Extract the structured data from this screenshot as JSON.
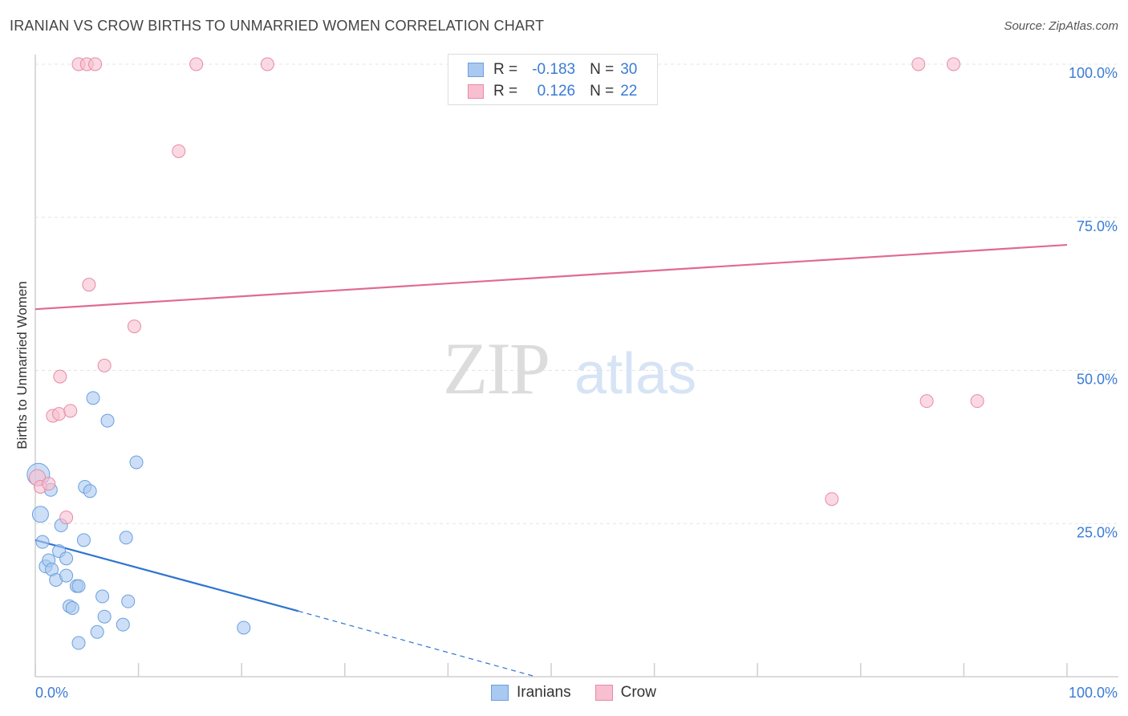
{
  "title": "IRANIAN VS CROW BIRTHS TO UNMARRIED WOMEN CORRELATION CHART",
  "source": "Source: ZipAtlas.com",
  "watermark": {
    "zip": "ZIP",
    "atlas": "atlas"
  },
  "legend": {
    "rows": [
      {
        "r_label": "R =",
        "r_value": "-0.183",
        "n_label": "N =",
        "n_value": "30",
        "color": "#aac9f0",
        "border": "#6a9fe0"
      },
      {
        "r_label": "R =",
        "r_value": "0.126",
        "n_label": "N =",
        "n_value": "22",
        "color": "#f7bfd0",
        "border": "#e88aa6"
      }
    ]
  },
  "bottom_legend": [
    {
      "label": "Iranians",
      "color": "#aac9f0",
      "border": "#6a9fe0"
    },
    {
      "label": "Crow",
      "color": "#f7bfd0",
      "border": "#e88aa6"
    }
  ],
  "chart_data": {
    "type": "scatter",
    "title": "IRANIAN VS CROW BIRTHS TO UNMARRIED WOMEN CORRELATION CHART",
    "xlabel": "",
    "ylabel": "Births to Unmarried Women",
    "xlim": [
      0,
      100
    ],
    "ylim": [
      0,
      100
    ],
    "x_tick_labels": [
      "0.0%",
      "100.0%"
    ],
    "y_tick_labels": [
      "25.0%",
      "50.0%",
      "75.0%",
      "100.0%"
    ],
    "y_ticks": [
      25,
      50,
      75,
      100
    ],
    "series": [
      {
        "name": "Iranians",
        "color": "#aac9f0",
        "stroke": "#6a9fe0",
        "points": [
          [
            0.3,
            33.0,
            14
          ],
          [
            0.5,
            26.5,
            10
          ],
          [
            0.7,
            22.0,
            8
          ],
          [
            1.0,
            18.0,
            8
          ],
          [
            1.3,
            19.0,
            8
          ],
          [
            1.6,
            17.5,
            8
          ],
          [
            1.5,
            30.5,
            8
          ],
          [
            2.0,
            15.8,
            8
          ],
          [
            2.3,
            20.5,
            8
          ],
          [
            2.5,
            24.7,
            8
          ],
          [
            3.0,
            19.3,
            8
          ],
          [
            3.0,
            16.5,
            8
          ],
          [
            3.3,
            11.5,
            8
          ],
          [
            3.6,
            11.2,
            8
          ],
          [
            4.0,
            14.8,
            8
          ],
          [
            4.2,
            14.8,
            8
          ],
          [
            4.2,
            5.5,
            8
          ],
          [
            4.7,
            22.3,
            8
          ],
          [
            4.8,
            31.0,
            8
          ],
          [
            5.3,
            30.3,
            8
          ],
          [
            5.6,
            45.5,
            8
          ],
          [
            6.0,
            7.3,
            8
          ],
          [
            6.5,
            13.1,
            8
          ],
          [
            6.7,
            9.8,
            8
          ],
          [
            7.0,
            41.8,
            8
          ],
          [
            8.5,
            8.5,
            8
          ],
          [
            8.8,
            22.7,
            8
          ],
          [
            9.0,
            12.3,
            8
          ],
          [
            9.8,
            35.0,
            8
          ],
          [
            20.2,
            8.0,
            8
          ]
        ],
        "trend": {
          "x0": 0,
          "y0": 22.3,
          "x1": 25.5,
          "y1": 10.7,
          "dash_to_x": 48.5,
          "dash_to_y": 0
        }
      },
      {
        "name": "Crow",
        "color": "#f7bfd0",
        "stroke": "#e88aa6",
        "points": [
          [
            0.2,
            32.5,
            10
          ],
          [
            0.5,
            31.0,
            8
          ],
          [
            1.3,
            31.5,
            8
          ],
          [
            1.7,
            42.6,
            8
          ],
          [
            2.3,
            42.9,
            8
          ],
          [
            2.4,
            49.0,
            8
          ],
          [
            3.0,
            26.0,
            8
          ],
          [
            3.4,
            43.4,
            8
          ],
          [
            4.2,
            100.0,
            8
          ],
          [
            5.0,
            100.0,
            8
          ],
          [
            5.8,
            100.0,
            8
          ],
          [
            5.2,
            64.0,
            8
          ],
          [
            6.7,
            50.8,
            8
          ],
          [
            9.6,
            57.2,
            8
          ],
          [
            13.9,
            85.8,
            8
          ],
          [
            15.6,
            100.0,
            8
          ],
          [
            22.5,
            100.0,
            8
          ],
          [
            77.2,
            29.0,
            8
          ],
          [
            85.6,
            100.0,
            8
          ],
          [
            86.4,
            45.0,
            8
          ],
          [
            89.0,
            100.0,
            8
          ],
          [
            91.3,
            45.0,
            8
          ]
        ],
        "trend": {
          "x0": 0,
          "y0": 60.0,
          "x1": 100,
          "y1": 70.5
        }
      }
    ]
  }
}
